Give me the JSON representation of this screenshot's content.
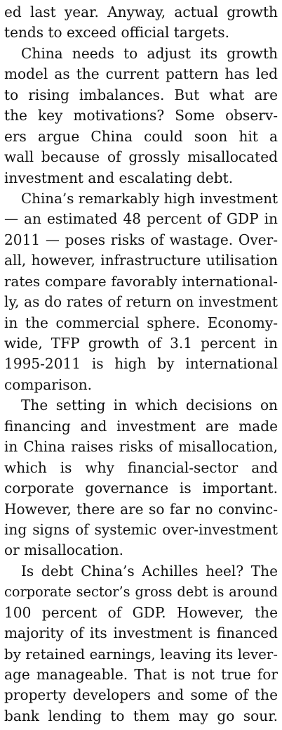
{
  "article": {
    "paragraphs": [
      {
        "lines": [
          "ed last year. Anyway, actual growth",
          "tends to exceed official targets."
        ],
        "indent": false
      },
      {
        "lines": [
          "China needs to adjust its growth",
          "model as the current pattern has led",
          "to rising imbalances. But what are",
          "the key motivations? Some observ-",
          "ers argue China could soon hit a",
          "wall because of grossly misallocated",
          "investment and escalating debt."
        ],
        "indent": true
      },
      {
        "lines": [
          "China’s remarkably high investment",
          "— an estimated 48 percent of GDP in",
          "2011 — poses risks of wastage. Over-",
          "all, however, infrastructure utilisation",
          "rates compare favorably international-",
          "ly, as do rates of return on investment",
          "in the commercial sphere. Economy-",
          "wide, TFP growth of 3.1 percent in",
          "1995-2011 is high by international",
          "comparison."
        ],
        "indent": true
      },
      {
        "lines": [
          "The setting in which decisions on",
          "financing and investment are made",
          "in China raises risks of misallocation,",
          "which is why financial-sector and",
          "corporate governance is important.",
          "However, there are so far no convinc-",
          "ing signs of systemic over-investment",
          "or misallocation."
        ],
        "indent": true
      },
      {
        "lines": [
          "Is debt China’s Achilles heel? The",
          "corporate sector’s gross debt is around",
          "100 percent of GDP. However, the",
          "majority of its investment is financed",
          "by retained earnings, leaving its lever-",
          "age manageable. That is not true for",
          "property developers and some of the",
          "bank lending to them may go sour."
        ],
        "indent": true
      }
    ]
  }
}
